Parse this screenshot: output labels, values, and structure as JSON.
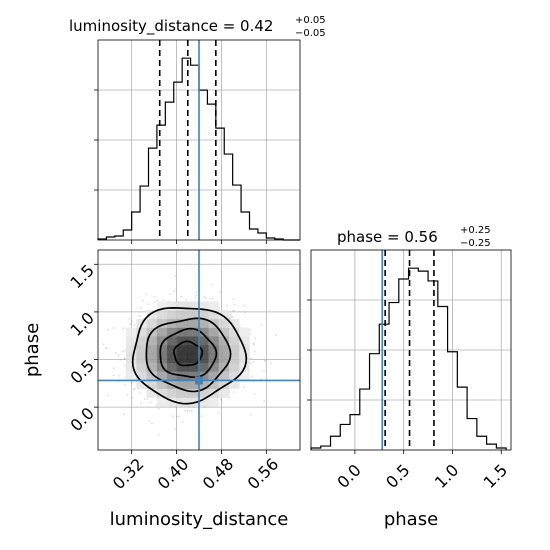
{
  "chart_data": {
    "type": "corner",
    "grid": true,
    "truth_color": "#4682b4",
    "hist_color": "#000000",
    "panels": [
      {
        "id": "hist-luminosity_distance",
        "type": "histogram",
        "parameter": "luminosity_distance",
        "title": {
          "text": "luminosity_distance = 0.42",
          "plus": "+0.05",
          "minus": "−0.05"
        },
        "xlim": [
          0.26,
          0.62
        ],
        "bin_edges": [
          0.26,
          0.275,
          0.29,
          0.305,
          0.32,
          0.335,
          0.35,
          0.365,
          0.38,
          0.395,
          0.41,
          0.425,
          0.44,
          0.455,
          0.47,
          0.485,
          0.5,
          0.515,
          0.53,
          0.545,
          0.56,
          0.575,
          0.59,
          0.605,
          0.62
        ],
        "counts": [
          1,
          3,
          4,
          10,
          28,
          54,
          92,
          115,
          138,
          158,
          182,
          175,
          150,
          136,
          112,
          86,
          55,
          28,
          11,
          7,
          2,
          1,
          0,
          0
        ],
        "quantiles": [
          0.37,
          0.42,
          0.47
        ],
        "truth": 0.44
      },
      {
        "id": "hist-phase",
        "type": "histogram",
        "parameter": "phase",
        "title": {
          "text": "phase = 0.56",
          "plus": "+0.25",
          "minus": "−0.25"
        },
        "xlim": [
          -0.45,
          1.6
        ],
        "xlabel": "phase",
        "xticks": [
          "0.0",
          "0.5",
          "1.0",
          "1.5"
        ],
        "xtick_values": [
          0.0,
          0.5,
          1.0,
          1.5
        ],
        "bin_edges": [
          -0.45,
          -0.35,
          -0.25,
          -0.15,
          -0.05,
          0.05,
          0.15,
          0.25,
          0.35,
          0.45,
          0.55,
          0.65,
          0.75,
          0.85,
          0.95,
          1.05,
          1.15,
          1.25,
          1.35,
          1.45,
          1.55
        ],
        "counts": [
          2,
          4,
          14,
          26,
          36,
          62,
          98,
          128,
          150,
          174,
          185,
          182,
          172,
          146,
          100,
          64,
          32,
          14,
          6,
          2
        ],
        "quantiles": [
          0.31,
          0.56,
          0.81
        ],
        "truth": 0.28
      },
      {
        "id": "joint-luminosity_distance-phase",
        "type": "2d-density",
        "x": "luminosity_distance",
        "y": "phase",
        "xlim": [
          0.26,
          0.62
        ],
        "ylim": [
          -0.45,
          1.65
        ],
        "xlabel": "luminosity_distance",
        "ylabel": "phase",
        "xticks": [
          "0.32",
          "0.40",
          "0.48",
          "0.56"
        ],
        "xtick_values": [
          0.32,
          0.4,
          0.48,
          0.56
        ],
        "yticks": [
          "0.0",
          "0.5",
          "1.0",
          "1.5"
        ],
        "ytick_values": [
          0.0,
          0.5,
          1.0,
          1.5
        ],
        "center": [
          0.42,
          0.56
        ],
        "spread": [
          0.05,
          0.25
        ],
        "contour_levels_sigma": [
          0.5,
          1.0,
          1.5,
          2.0
        ],
        "truth": [
          0.44,
          0.28
        ]
      }
    ]
  }
}
